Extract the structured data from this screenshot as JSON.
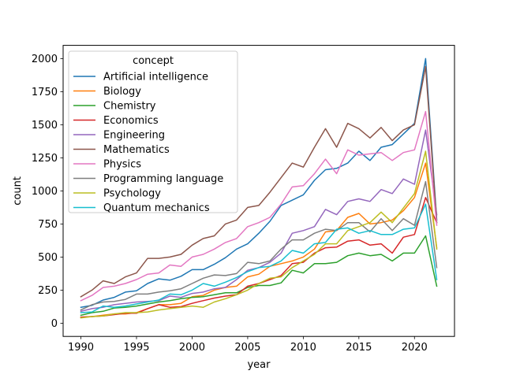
{
  "chart_data": {
    "type": "line",
    "xlabel": "year",
    "ylabel": "count",
    "xlim": [
      1988.4,
      2023.6
    ],
    "ylim": [
      -100,
      2100
    ],
    "xticks": [
      1990,
      1995,
      2000,
      2005,
      2010,
      2015,
      2020
    ],
    "yticks": [
      0,
      250,
      500,
      750,
      1000,
      1250,
      1500,
      1750,
      2000
    ],
    "grid": false,
    "legend": {
      "title": "concept",
      "placement": "upper-left"
    },
    "x": [
      1990,
      1991,
      1992,
      1993,
      1994,
      1995,
      1996,
      1997,
      1998,
      1999,
      2000,
      2001,
      2002,
      2003,
      2004,
      2005,
      2006,
      2007,
      2008,
      2009,
      2010,
      2011,
      2012,
      2013,
      2014,
      2015,
      2016,
      2017,
      2018,
      2019,
      2020,
      2021,
      2022
    ],
    "series": [
      {
        "name": "Artificial intelligence",
        "color": "#1f77b4",
        "values": [
          120,
          135,
          175,
          195,
          235,
          245,
          300,
          335,
          325,
          355,
          405,
          405,
          445,
          495,
          560,
          600,
          680,
          770,
          890,
          930,
          970,
          1080,
          1160,
          1170,
          1210,
          1300,
          1230,
          1330,
          1350,
          1430,
          1510,
          2000,
          780
        ]
      },
      {
        "name": "Biology",
        "color": "#ff7f0e",
        "values": [
          45,
          50,
          60,
          70,
          70,
          80,
          110,
          140,
          140,
          150,
          200,
          210,
          250,
          270,
          280,
          350,
          370,
          430,
          450,
          470,
          500,
          560,
          690,
          700,
          800,
          830,
          750,
          760,
          780,
          850,
          950,
          1210,
          570
        ]
      },
      {
        "name": "Chemistry",
        "color": "#2ca02c",
        "values": [
          60,
          80,
          90,
          115,
          120,
          130,
          145,
          160,
          170,
          185,
          195,
          200,
          215,
          230,
          230,
          270,
          285,
          285,
          305,
          400,
          380,
          450,
          450,
          460,
          510,
          530,
          510,
          520,
          470,
          530,
          530,
          660,
          280
        ]
      },
      {
        "name": "Economics",
        "color": "#d62728",
        "values": [
          45,
          50,
          55,
          65,
          75,
          75,
          110,
          140,
          120,
          125,
          150,
          170,
          190,
          205,
          215,
          280,
          300,
          330,
          360,
          450,
          460,
          530,
          570,
          575,
          620,
          630,
          590,
          600,
          530,
          650,
          670,
          950,
          760
        ]
      },
      {
        "name": "Engineering",
        "color": "#9467bd",
        "values": [
          90,
          110,
          120,
          140,
          150,
          160,
          165,
          170,
          205,
          195,
          225,
          235,
          260,
          270,
          330,
          400,
          420,
          460,
          530,
          680,
          700,
          730,
          860,
          820,
          920,
          940,
          920,
          1010,
          980,
          1090,
          1050,
          1460,
          820
        ]
      },
      {
        "name": "Mathematics",
        "color": "#8c564b",
        "values": [
          200,
          250,
          320,
          300,
          350,
          380,
          490,
          490,
          500,
          520,
          590,
          640,
          660,
          750,
          780,
          875,
          890,
          990,
          1100,
          1210,
          1180,
          1330,
          1470,
          1330,
          1510,
          1470,
          1400,
          1480,
          1380,
          1460,
          1500,
          1940,
          760
        ]
      },
      {
        "name": "Physics",
        "color": "#e377c2",
        "values": [
          170,
          210,
          270,
          280,
          300,
          330,
          370,
          380,
          440,
          430,
          500,
          520,
          560,
          610,
          640,
          730,
          760,
          800,
          900,
          1030,
          1040,
          1130,
          1240,
          1130,
          1310,
          1270,
          1280,
          1290,
          1230,
          1290,
          1310,
          1600,
          740
        ]
      },
      {
        "name": "Programming language",
        "color": "#7f7f7f",
        "values": [
          100,
          140,
          160,
          165,
          180,
          220,
          220,
          235,
          245,
          260,
          300,
          340,
          365,
          360,
          375,
          460,
          450,
          470,
          560,
          630,
          630,
          680,
          710,
          700,
          760,
          760,
          690,
          790,
          700,
          790,
          740,
          1070,
          420
        ]
      },
      {
        "name": "Psychology",
        "color": "#bcbd22",
        "values": [
          40,
          50,
          55,
          70,
          80,
          80,
          85,
          100,
          110,
          120,
          130,
          120,
          160,
          185,
          215,
          250,
          300,
          340,
          350,
          420,
          470,
          520,
          600,
          600,
          700,
          730,
          760,
          840,
          760,
          870,
          980,
          1300,
          560
        ]
      },
      {
        "name": "Quantum mechanics",
        "color": "#17becf",
        "values": [
          80,
          85,
          130,
          120,
          130,
          145,
          160,
          175,
          220,
          215,
          250,
          300,
          280,
          310,
          345,
          390,
          420,
          430,
          470,
          550,
          530,
          600,
          610,
          710,
          720,
          680,
          700,
          670,
          670,
          710,
          720,
          900,
          330
        ]
      }
    ]
  }
}
